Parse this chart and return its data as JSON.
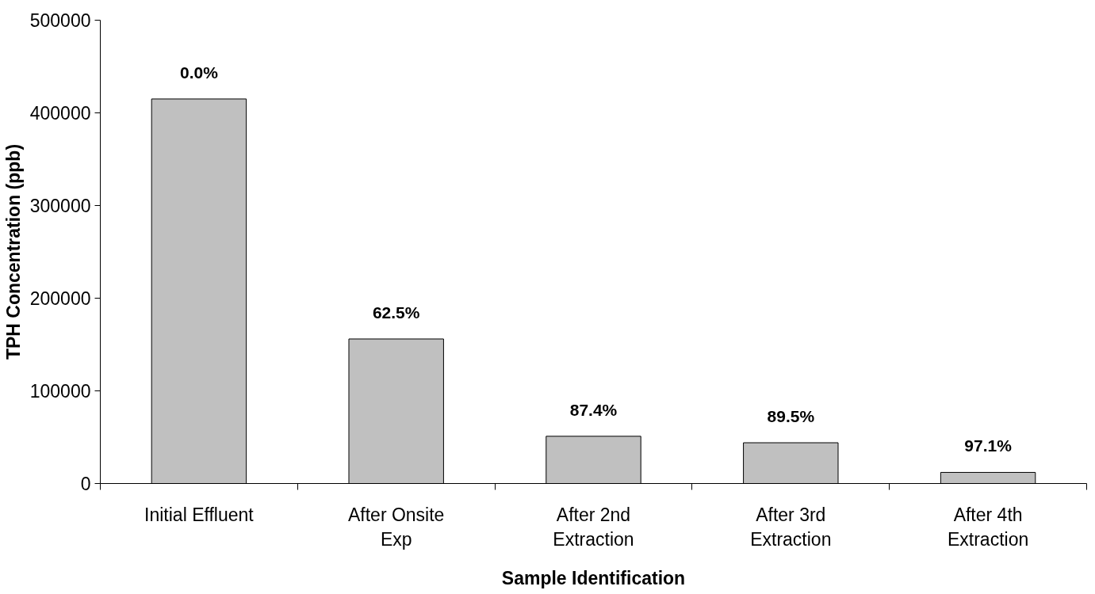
{
  "chart_data": {
    "type": "bar",
    "xlabel": "Sample Identification",
    "ylabel": "TPH Concentration (ppb)",
    "categories": [
      "Initial Effluent",
      "After Onsite\nExp",
      "After 2nd\nExtraction",
      "After 3rd\nExtraction",
      "After 4th\nExtraction"
    ],
    "values": [
      415000,
      156000,
      51000,
      44000,
      12000
    ],
    "annotations": [
      {
        "text": "0.0%",
        "x": "Initial Effluent",
        "y": 415000
      },
      {
        "text": "62.5%",
        "x": "After Onsite\nExp",
        "y": 156000
      },
      {
        "text": "87.4%",
        "x": "After 2nd\nExtraction",
        "y": 51000
      },
      {
        "text": "89.5%",
        "x": "After 3rd\nExtraction",
        "y": 44000
      },
      {
        "text": "97.1%",
        "x": "After 4th\nExtraction",
        "y": 12000
      }
    ],
    "color": "#c0c0c0",
    "ylim": [
      0,
      500000
    ],
    "yticks": [
      0,
      100000,
      200000,
      300000,
      400000,
      500000
    ],
    "grid": false
  }
}
